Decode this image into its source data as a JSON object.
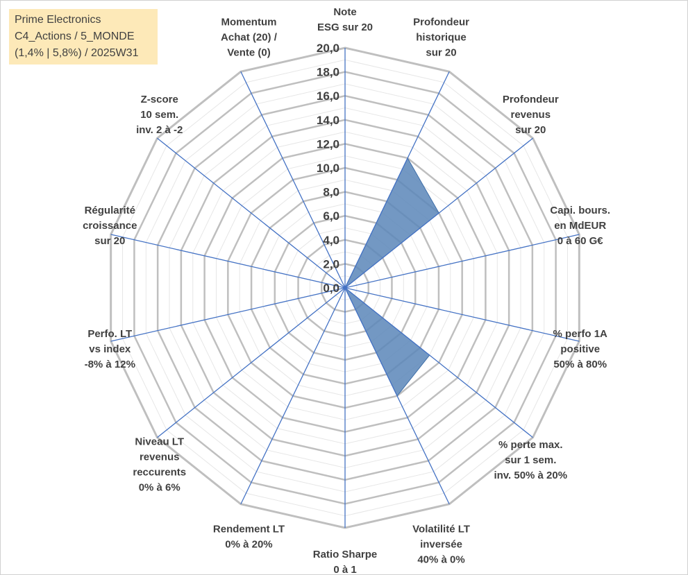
{
  "info_box": {
    "line1": "Prime Electronics",
    "line2": "C4_Actions / 5_MONDE",
    "line3": "(1,4% | 5,8%) / 2025W31"
  },
  "colors": {
    "grid": "#bfbfbf",
    "spokes": "#4472c4",
    "fill": "#5b86b8",
    "text": "#404040",
    "info_bg": "#fde9b8"
  },
  "chart_data": {
    "type": "radar",
    "title": "",
    "rmin": 0,
    "rmax": 20,
    "tick_step": 2,
    "tick_labels": [
      "0,0",
      "2,0",
      "4,0",
      "6,0",
      "8,0",
      "10,0",
      "12,0",
      "14,0",
      "16,0",
      "18,0",
      "20,0"
    ],
    "gridlines": true,
    "axes": [
      {
        "label_lines": [
          "Note",
          "ESG sur 20"
        ]
      },
      {
        "label_lines": [
          "Profondeur",
          "historique",
          "sur 20"
        ]
      },
      {
        "label_lines": [
          "Profondeur",
          "revenus",
          "sur 20"
        ]
      },
      {
        "label_lines": [
          "Capi. bours.",
          "en MdEUR",
          "0 à 60 G€"
        ]
      },
      {
        "label_lines": [
          "% perfo 1A",
          "positive",
          "50% à 80%"
        ]
      },
      {
        "label_lines": [
          "% perte max.",
          "sur 1 sem.",
          "inv. 50% à 20%"
        ]
      },
      {
        "label_lines": [
          "Volatilité LT",
          "inversée",
          "40% à 0%"
        ]
      },
      {
        "label_lines": [
          "Ratio Sharpe",
          "0 à 1"
        ]
      },
      {
        "label_lines": [
          "Rendement LT",
          "0% à 20%"
        ]
      },
      {
        "label_lines": [
          "Niveau LT",
          "revenus",
          "reccurents",
          "0% à 6%"
        ]
      },
      {
        "label_lines": [
          "Perfo. LT",
          "vs index",
          "-8% à 12%"
        ]
      },
      {
        "label_lines": [
          "Régularité",
          "croissance",
          "sur 20"
        ]
      },
      {
        "label_lines": [
          "Z-score",
          "10 sem.",
          "inv. 2 à -2"
        ]
      },
      {
        "label_lines": [
          "Momentum",
          "Achat (20) /",
          "Vente (0)"
        ]
      }
    ],
    "series": [
      {
        "values": [
          0,
          12,
          10,
          0,
          0,
          9,
          10,
          0,
          0,
          0,
          0,
          0,
          0,
          0
        ]
      }
    ]
  }
}
